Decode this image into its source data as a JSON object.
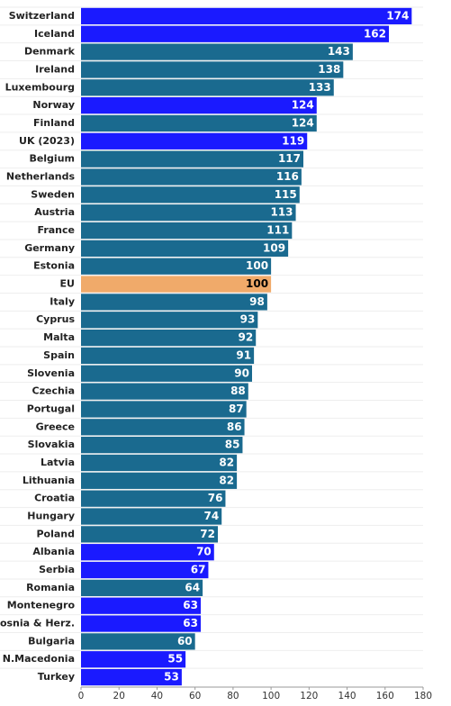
{
  "chart_data": {
    "type": "barh",
    "categories": [
      "Switzerland",
      "Iceland",
      "Denmark",
      "Ireland",
      "Luxembourg",
      "Norway",
      "Finland",
      "UK (2023)",
      "Belgium",
      "Netherlands",
      "Sweden",
      "Austria",
      "France",
      "Germany",
      "Estonia",
      "EU",
      "Italy",
      "Cyprus",
      "Malta",
      "Spain",
      "Slovenia",
      "Czechia",
      "Portugal",
      "Greece",
      "Slovakia",
      "Latvia",
      "Lithuania",
      "Croatia",
      "Hungary",
      "Poland",
      "Albania",
      "Serbia",
      "Romania",
      "Montenegro",
      "Bosnia & Herz.",
      "Bulgaria",
      "N.Macedonia",
      "Turkey"
    ],
    "values": [
      174,
      162,
      143,
      138,
      133,
      124,
      124,
      119,
      117,
      116,
      115,
      113,
      111,
      109,
      100,
      100,
      98,
      93,
      92,
      91,
      90,
      88,
      87,
      86,
      85,
      82,
      82,
      76,
      74,
      72,
      70,
      67,
      64,
      63,
      63,
      60,
      55,
      53
    ],
    "colors": [
      "#1a1aff",
      "#1a1aff",
      "#1a6a8f",
      "#1a6a8f",
      "#1a6a8f",
      "#1a1aff",
      "#1a6a8f",
      "#1a1aff",
      "#1a6a8f",
      "#1a6a8f",
      "#1a6a8f",
      "#1a6a8f",
      "#1a6a8f",
      "#1a6a8f",
      "#1a6a8f",
      "#f0aa6a",
      "#1a6a8f",
      "#1a6a8f",
      "#1a6a8f",
      "#1a6a8f",
      "#1a6a8f",
      "#1a6a8f",
      "#1a6a8f",
      "#1a6a8f",
      "#1a6a8f",
      "#1a6a8f",
      "#1a6a8f",
      "#1a6a8f",
      "#1a6a8f",
      "#1a6a8f",
      "#1a1aff",
      "#1a1aff",
      "#1a6a8f",
      "#1a1aff",
      "#1a1aff",
      "#1a6a8f",
      "#1a1aff",
      "#1a1aff"
    ],
    "xlim": [
      0,
      180
    ],
    "xticks": [
      0,
      20,
      40,
      60,
      80,
      100,
      120,
      140,
      160,
      180
    ]
  }
}
